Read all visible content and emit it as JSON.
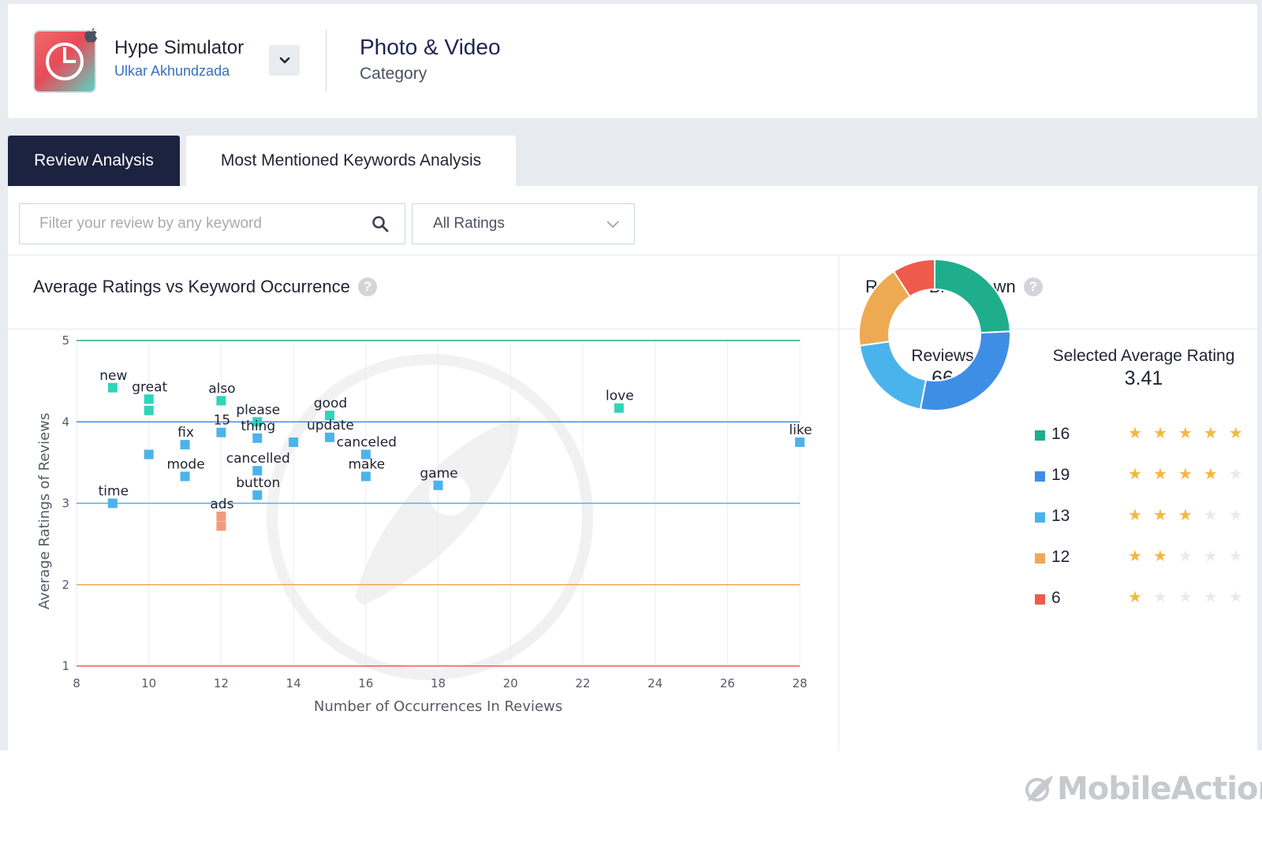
{
  "app": {
    "name": "Hype Simulator",
    "developer": "Ulkar Akhundzada",
    "platform_icon": "apple-icon"
  },
  "category": {
    "name": "Photo & Video",
    "label": "Category"
  },
  "tabs": [
    {
      "label": "Review Analysis",
      "active": true
    },
    {
      "label": "Most Mentioned Keywords Analysis",
      "active": false
    }
  ],
  "filter": {
    "search_placeholder": "Filter your review by any keyword",
    "search_value": "",
    "rating_selected": "All Ratings"
  },
  "scatter_panel": {
    "title": "Average Ratings vs Keyword Occurrence"
  },
  "breakdown_panel": {
    "title": "Ratings Breakdown",
    "reviews_label": "Reviews",
    "reviews_value": "66",
    "avg_label": "Selected Average Rating",
    "avg_value": "3.41",
    "rows": [
      {
        "count": "16",
        "stars": 5,
        "color": "#1eae8b"
      },
      {
        "count": "19",
        "stars": 4,
        "color": "#3f8ee5"
      },
      {
        "count": "13",
        "stars": 3,
        "color": "#4bb3ec"
      },
      {
        "count": "12",
        "stars": 2,
        "color": "#eeaa52"
      },
      {
        "count": "6",
        "stars": 1,
        "color": "#ee5b4c"
      }
    ]
  },
  "brand": {
    "name": "MobileAction"
  },
  "chart_data": [
    {
      "type": "scatter",
      "xlabel": "Number of Occurrences In Reviews",
      "ylabel": "Average Ratings of Reviews",
      "xlim": [
        8,
        28
      ],
      "ylim": [
        1,
        5
      ],
      "xticks": [
        8,
        10,
        12,
        14,
        16,
        18,
        20,
        22,
        24,
        26,
        28
      ],
      "yticks": [
        1,
        2,
        3,
        4,
        5
      ],
      "reference_lines": [
        {
          "y": 5,
          "color": "#1eae8b"
        },
        {
          "y": 4,
          "color": "#3f8ee5"
        },
        {
          "y": 3,
          "color": "#4bb3ec"
        },
        {
          "y": 2,
          "color": "#eeaa52"
        },
        {
          "y": 1,
          "color": "#ee5b4c"
        }
      ],
      "points": [
        {
          "x": 9,
          "y": 4.42,
          "label": "new",
          "color": "#2cd6bb"
        },
        {
          "x": 10,
          "y": 4.28,
          "label": "great",
          "color": "#2cd6bb"
        },
        {
          "x": 10,
          "y": 4.14,
          "label": "",
          "color": "#2cd6bb"
        },
        {
          "x": 10,
          "y": 3.6,
          "label": "",
          "color": "#4bb3ec"
        },
        {
          "x": 11,
          "y": 3.72,
          "label": "fix",
          "color": "#4bb3ec"
        },
        {
          "x": 11,
          "y": 3.33,
          "label": "mode",
          "color": "#4bb3ec"
        },
        {
          "x": 9,
          "y": 3.0,
          "label": "time",
          "color": "#4bb3ec"
        },
        {
          "x": 12,
          "y": 4.26,
          "label": "also",
          "color": "#2cd6bb"
        },
        {
          "x": 12,
          "y": 3.87,
          "label": "15",
          "color": "#4bb3ec"
        },
        {
          "x": 12,
          "y": 2.84,
          "label": "ads",
          "color": "#f49a7a"
        },
        {
          "x": 12,
          "y": 2.72,
          "label": "",
          "color": "#f49a7a"
        },
        {
          "x": 13,
          "y": 4.0,
          "label": "please",
          "color": "#2cd6bb"
        },
        {
          "x": 13,
          "y": 3.8,
          "label": "thing",
          "color": "#4bb3ec"
        },
        {
          "x": 13,
          "y": 3.4,
          "label": "cancelled",
          "color": "#4bb3ec"
        },
        {
          "x": 13,
          "y": 3.1,
          "label": "button",
          "color": "#4bb3ec"
        },
        {
          "x": 14,
          "y": 3.75,
          "label": "",
          "color": "#4bb3ec"
        },
        {
          "x": 15,
          "y": 4.08,
          "label": "good",
          "color": "#2cd6bb"
        },
        {
          "x": 15,
          "y": 3.81,
          "label": "update",
          "color": "#4bb3ec"
        },
        {
          "x": 16,
          "y": 3.6,
          "label": "canceled",
          "color": "#4bb3ec"
        },
        {
          "x": 16,
          "y": 3.33,
          "label": "make",
          "color": "#4bb3ec"
        },
        {
          "x": 18,
          "y": 3.22,
          "label": "game",
          "color": "#4bb3ec"
        },
        {
          "x": 23,
          "y": 4.17,
          "label": "love",
          "color": "#2cd6bb"
        },
        {
          "x": 28,
          "y": 3.75,
          "label": "like",
          "color": "#4bb3ec"
        }
      ]
    },
    {
      "type": "pie",
      "categories": [
        "5 stars",
        "4 stars",
        "3 stars",
        "2 stars",
        "1 star"
      ],
      "values": [
        16,
        19,
        13,
        12,
        6
      ],
      "colors": [
        "#1eae8b",
        "#3f8ee5",
        "#4bb3ec",
        "#eeaa52",
        "#ee5b4c"
      ]
    }
  ]
}
